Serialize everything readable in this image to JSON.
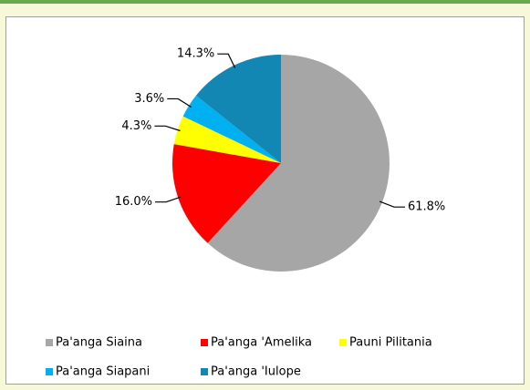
{
  "chart_data": {
    "type": "pie",
    "categories": [
      "Pa'anga Siaina",
      "Pa'anga 'Amelika",
      "Pauni Pilitania",
      "Pa'anga Siapani",
      "Pa'anga 'Iulope"
    ],
    "values": [
      61.8,
      16.0,
      4.3,
      3.6,
      14.3
    ],
    "value_labels": [
      "61.8%",
      "16.0%",
      "4.3%",
      "3.6%",
      "14.3%"
    ],
    "colors": [
      "#a6a6a6",
      "#ff0000",
      "#ffff00",
      "#00b0f0",
      "#1287b4"
    ]
  }
}
